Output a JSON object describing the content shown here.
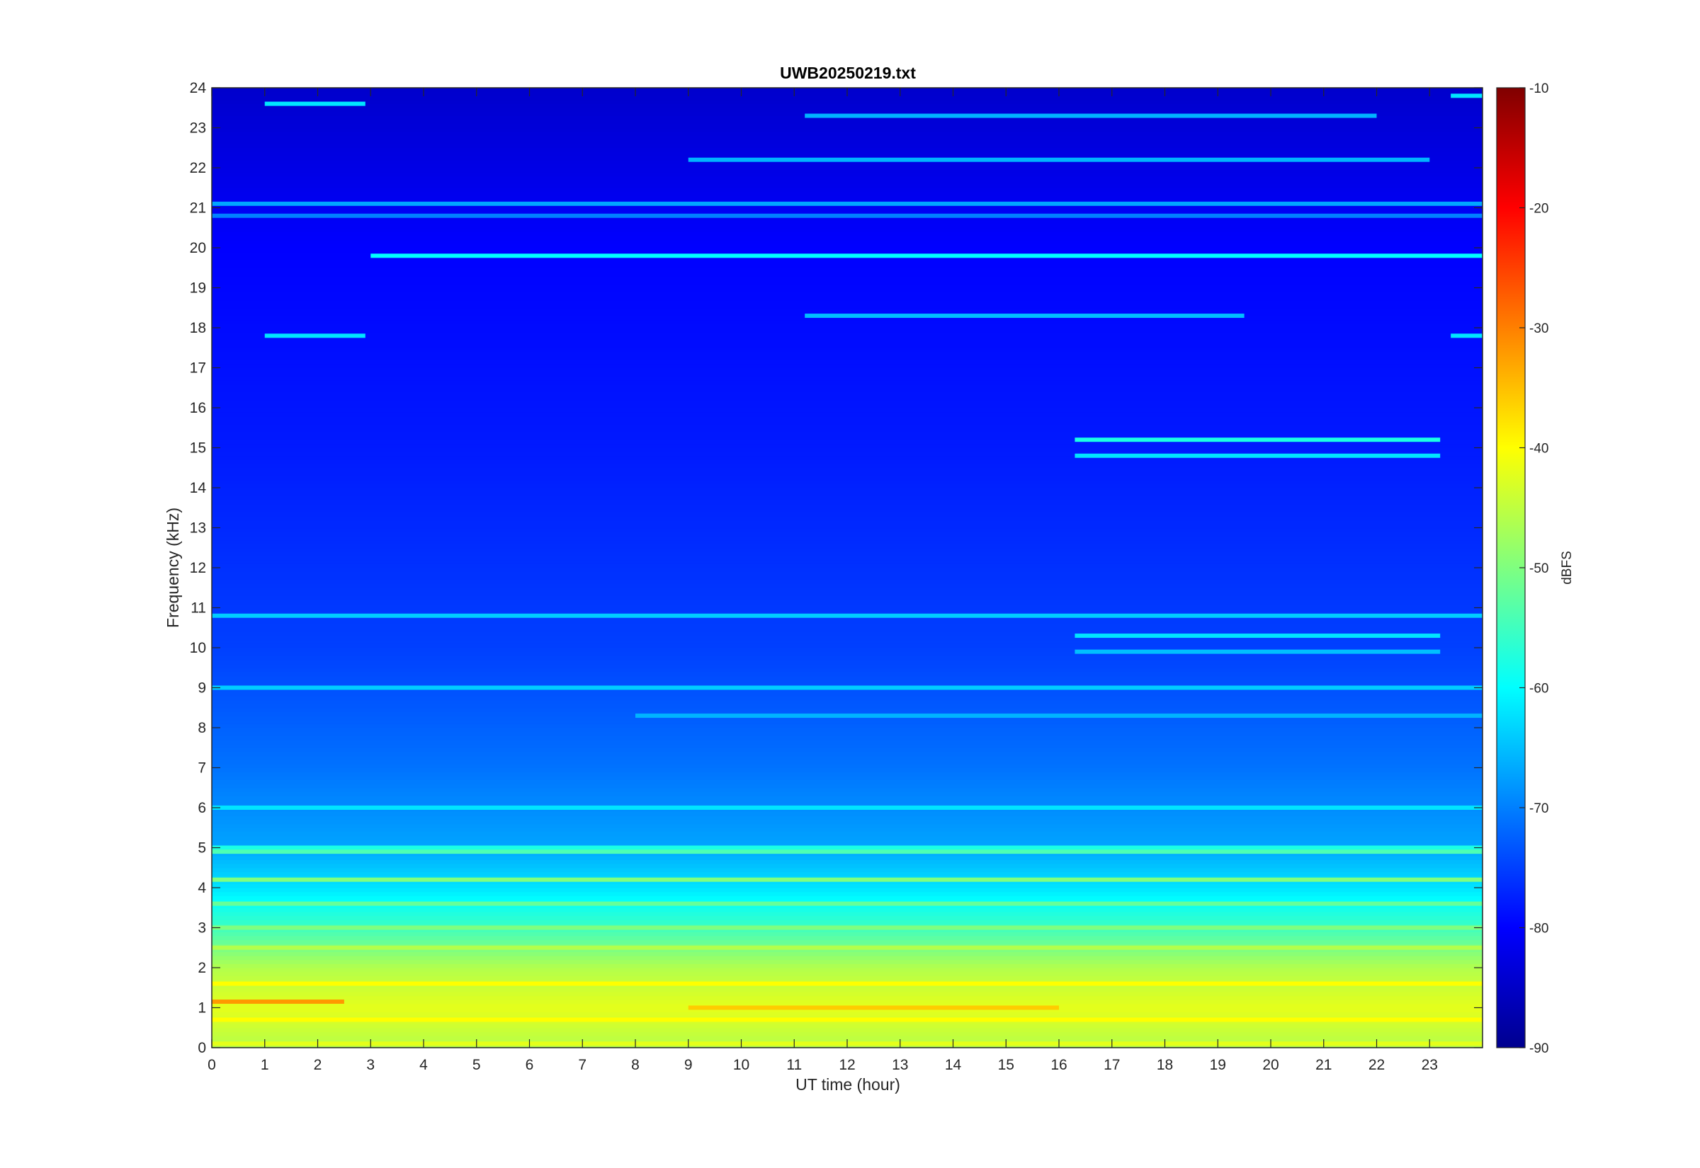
{
  "chart_data": {
    "type": "heatmap",
    "title": "UWB20250219.txt",
    "xlabel": "UT time (hour)",
    "ylabel": "Frequency (kHz)",
    "xlim": [
      0,
      24
    ],
    "ylim": [
      0,
      24
    ],
    "x_ticks": [
      "0",
      "1",
      "2",
      "3",
      "4",
      "5",
      "6",
      "7",
      "8",
      "9",
      "10",
      "11",
      "12",
      "13",
      "14",
      "15",
      "16",
      "17",
      "18",
      "19",
      "20",
      "21",
      "22",
      "23"
    ],
    "y_ticks": [
      "0",
      "1",
      "2",
      "3",
      "4",
      "5",
      "6",
      "7",
      "8",
      "9",
      "10",
      "11",
      "12",
      "13",
      "14",
      "15",
      "16",
      "17",
      "18",
      "19",
      "20",
      "21",
      "22",
      "23",
      "24"
    ],
    "colorbar": {
      "label": "dBFS",
      "range": [
        -90,
        -10
      ],
      "ticks": [
        "-10",
        "-20",
        "-30",
        "-40",
        "-50",
        "-60",
        "-70",
        "-80",
        "-90"
      ],
      "colormap": "jet"
    },
    "background_profile_dbfs": [
      {
        "freq_khz": 0.0,
        "level": -46
      },
      {
        "freq_khz": 1.0,
        "level": -42
      },
      {
        "freq_khz": 2.0,
        "level": -46
      },
      {
        "freq_khz": 3.0,
        "level": -55
      },
      {
        "freq_khz": 4.0,
        "level": -62
      },
      {
        "freq_khz": 5.0,
        "level": -67
      },
      {
        "freq_khz": 7.0,
        "level": -71
      },
      {
        "freq_khz": 10.0,
        "level": -75
      },
      {
        "freq_khz": 15.0,
        "level": -78
      },
      {
        "freq_khz": 20.0,
        "level": -80
      },
      {
        "freq_khz": 24.0,
        "level": -84
      }
    ],
    "horizontal_lines": [
      {
        "freq_khz": 19.8,
        "t_start": 3.0,
        "t_end": 24.0,
        "level": -60
      },
      {
        "freq_khz": 18.3,
        "t_start": 11.2,
        "t_end": 19.5,
        "level": -65
      },
      {
        "freq_khz": 17.8,
        "t_start": 1.0,
        "t_end": 2.9,
        "level": -62
      },
      {
        "freq_khz": 17.8,
        "t_start": 23.4,
        "t_end": 24.0,
        "level": -62
      },
      {
        "freq_khz": 23.6,
        "t_start": 1.0,
        "t_end": 2.9,
        "level": -62
      },
      {
        "freq_khz": 23.8,
        "t_start": 23.4,
        "t_end": 24.0,
        "level": -62
      },
      {
        "freq_khz": 22.2,
        "t_start": 9.0,
        "t_end": 23.0,
        "level": -66
      },
      {
        "freq_khz": 21.1,
        "t_start": 0.0,
        "t_end": 24.0,
        "level": -67
      },
      {
        "freq_khz": 20.8,
        "t_start": 0.0,
        "t_end": 24.0,
        "level": -70
      },
      {
        "freq_khz": 10.8,
        "t_start": 0.0,
        "t_end": 24.0,
        "level": -64
      },
      {
        "freq_khz": 9.0,
        "t_start": 0.0,
        "t_end": 24.0,
        "level": -64
      },
      {
        "freq_khz": 8.3,
        "t_start": 8.0,
        "t_end": 24.0,
        "level": -66
      },
      {
        "freq_khz": 6.0,
        "t_start": 0.0,
        "t_end": 24.0,
        "level": -62
      },
      {
        "freq_khz": 5.0,
        "t_start": 0.0,
        "t_end": 24.0,
        "level": -58
      },
      {
        "freq_khz": 4.9,
        "t_start": 0.0,
        "t_end": 24.0,
        "level": -54
      },
      {
        "freq_khz": 4.2,
        "t_start": 0.0,
        "t_end": 24.0,
        "level": -50
      },
      {
        "freq_khz": 3.6,
        "t_start": 0.0,
        "t_end": 24.0,
        "level": -52
      },
      {
        "freq_khz": 3.0,
        "t_start": 0.0,
        "t_end": 24.0,
        "level": -50
      },
      {
        "freq_khz": 2.5,
        "t_start": 0.0,
        "t_end": 24.0,
        "level": -46
      },
      {
        "freq_khz": 1.6,
        "t_start": 0.0,
        "t_end": 24.0,
        "level": -40
      },
      {
        "freq_khz": 1.15,
        "t_start": 0.0,
        "t_end": 2.5,
        "level": -32
      },
      {
        "freq_khz": 1.0,
        "t_start": 9.0,
        "t_end": 16.0,
        "level": -36
      },
      {
        "freq_khz": 0.7,
        "t_start": 0.0,
        "t_end": 24.0,
        "level": -40
      },
      {
        "freq_khz": 0.1,
        "t_start": 0.0,
        "t_end": 24.0,
        "level": -42
      },
      {
        "freq_khz": 15.2,
        "t_start": 16.3,
        "t_end": 23.2,
        "level": -58
      },
      {
        "freq_khz": 14.8,
        "t_start": 16.3,
        "t_end": 23.2,
        "level": -62
      },
      {
        "freq_khz": 10.3,
        "t_start": 16.3,
        "t_end": 23.2,
        "level": -62
      },
      {
        "freq_khz": 9.9,
        "t_start": 16.3,
        "t_end": 23.2,
        "level": -65
      },
      {
        "freq_khz": 23.3,
        "t_start": 11.2,
        "t_end": 22.0,
        "level": -66
      }
    ]
  }
}
